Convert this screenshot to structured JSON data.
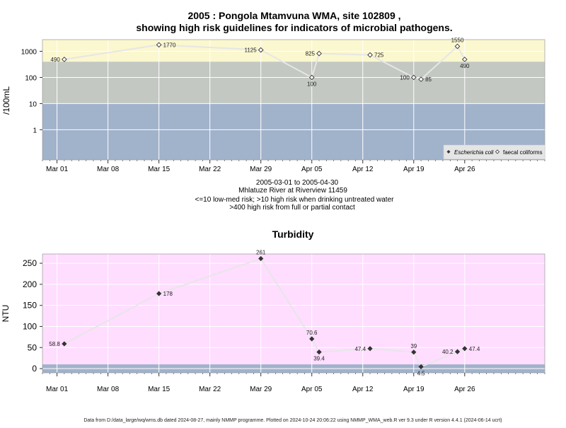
{
  "colors": {
    "band_high": "#fbf7cf",
    "band_mid": "#c3c8c2",
    "band_low": "#a1b2cb",
    "turb_bg": "#ffddff",
    "turb_low": "#a1b2cb",
    "line": "#e6e6e6",
    "grid": "#ffffff"
  },
  "footer": "Data from D:/data_large/wq/wms.db dated 2024-08-27, mainly NMMP programme. Plotted on 2024-10-24 20:06:22 using NMMP_WMA_web.R ver 9.3 under R version 4.4.1 (2024-06-14 ucrt)",
  "chart_data": [
    {
      "type": "scatter",
      "title": "2005 : Pongola Mtamvuna WMA, site 102809 ,",
      "subtitle": "showing high risk guidelines for indicators of microbial pathogens.",
      "ylabel": "/100mL",
      "yscale": "log",
      "yticks": [
        "1",
        "10",
        "100",
        "1000"
      ],
      "xticks": [
        "Mar 01",
        "Mar 08",
        "Mar 15",
        "Mar 22",
        "Mar 29",
        "Apr 05",
        "Apr 12",
        "Apr 19",
        "Apr 26"
      ],
      "xlim": [
        "2005-02-27",
        "2005-05-07"
      ],
      "ylim": [
        0.07,
        2800
      ],
      "notes": [
        "2005-03-01 to 2005-04-30",
        "Mhlatuze River at Riverview 11459",
        "<=10 low-med risk; >10 high risk when drinking untreated water",
        ">400 high risk from full or partial contact"
      ],
      "bands": [
        {
          "from": 400,
          "to": 2800,
          "label": "high risk from full or partial contact"
        },
        {
          "from": 10,
          "to": 400,
          "label": "high risk when drinking untreated water"
        },
        {
          "from": 0.07,
          "to": 10,
          "label": "low-med risk"
        }
      ],
      "legend": {
        "position": "bottom-right",
        "entries": [
          "Escherichia coli",
          "faecal coliforms"
        ]
      },
      "series": [
        {
          "name": "faecal coliforms",
          "marker": "open-diamond",
          "points": [
            {
              "x": "2005-03-02",
              "y": 490,
              "label": "490",
              "label_pos": "left"
            },
            {
              "x": "2005-03-15",
              "y": 1770,
              "label": "1770",
              "label_pos": "right"
            },
            {
              "x": "2005-03-29",
              "y": 1125,
              "label": "1125",
              "label_pos": "left"
            },
            {
              "x": "2005-04-05",
              "y": 100,
              "label": "100",
              "label_pos": "below"
            },
            {
              "x": "2005-04-06",
              "y": 825,
              "label": "825",
              "label_pos": "left"
            },
            {
              "x": "2005-04-13",
              "y": 725,
              "label": "725",
              "label_pos": "right"
            },
            {
              "x": "2005-04-19",
              "y": 100,
              "label": "100",
              "label_pos": "left"
            },
            {
              "x": "2005-04-20",
              "y": 85,
              "label": "85",
              "label_pos": "right"
            },
            {
              "x": "2005-04-25",
              "y": 1550,
              "label": "1550",
              "label_pos": "above"
            },
            {
              "x": "2005-04-26",
              "y": 490,
              "label": "490",
              "label_pos": "below"
            }
          ]
        }
      ]
    },
    {
      "type": "scatter",
      "title": "Turbidity",
      "ylabel": "NTU",
      "yticks": [
        0,
        50,
        100,
        150,
        200,
        250
      ],
      "xticks": [
        "Mar 01",
        "Mar 08",
        "Mar 15",
        "Mar 22",
        "Mar 29",
        "Apr 05",
        "Apr 12",
        "Apr 19",
        "Apr 26"
      ],
      "xlim": [
        "2005-02-27",
        "2005-05-07"
      ],
      "ylim": [
        -10,
        272
      ],
      "low_band_to": 10,
      "series": [
        {
          "name": "Turbidity",
          "marker": "filled-diamond",
          "points": [
            {
              "x": "2005-03-02",
              "y": 58.8,
              "label": "58.8",
              "label_pos": "left"
            },
            {
              "x": "2005-03-15",
              "y": 178,
              "label": "178",
              "label_pos": "right"
            },
            {
              "x": "2005-03-29",
              "y": 261,
              "label": "261",
              "label_pos": "above"
            },
            {
              "x": "2005-04-05",
              "y": 70.6,
              "label": "70.6",
              "label_pos": "above"
            },
            {
              "x": "2005-04-06",
              "y": 39.4,
              "label": "39.4",
              "label_pos": "below"
            },
            {
              "x": "2005-04-13",
              "y": 47.4,
              "label": "47.4",
              "label_pos": "left"
            },
            {
              "x": "2005-04-19",
              "y": 39,
              "label": "39",
              "label_pos": "above"
            },
            {
              "x": "2005-04-20",
              "y": 4.5,
              "label": "4.5",
              "label_pos": "below"
            },
            {
              "x": "2005-04-25",
              "y": 40.2,
              "label": "40.2",
              "label_pos": "left"
            },
            {
              "x": "2005-04-26",
              "y": 47.4,
              "label": "47.4",
              "label_pos": "right"
            }
          ]
        }
      ]
    }
  ]
}
